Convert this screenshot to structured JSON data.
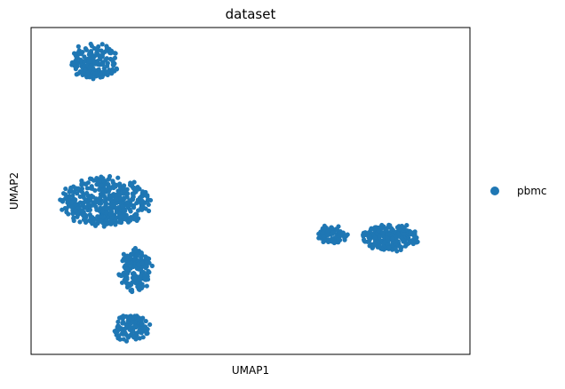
{
  "chart_data": {
    "type": "scatter",
    "title": "dataset",
    "xlabel": "UMAP1",
    "ylabel": "UMAP2",
    "xticks": [],
    "yticks": [],
    "grid": false,
    "legend": {
      "placement": "right",
      "entries": [
        {
          "label": "pbmc",
          "color": "#1f77b4"
        }
      ]
    },
    "series": [
      {
        "name": "pbmc",
        "color": "#1f77b4",
        "clusters": [
          {
            "shape": "ellipse",
            "center": [
              -8.2,
              10.8
            ],
            "spread": [
              1.4,
              1.1
            ],
            "count": 180
          },
          {
            "shape": "ellipse",
            "center": [
              -7.6,
              1.8
            ],
            "spread": [
              2.6,
              1.5
            ],
            "count": 450
          },
          {
            "shape": "ellipse",
            "center": [
              -5.8,
              -2.6
            ],
            "spread": [
              0.9,
              1.3
            ],
            "count": 180
          },
          {
            "shape": "ellipse",
            "center": [
              -6.1,
              -6.3
            ],
            "spread": [
              1.0,
              0.8
            ],
            "count": 130
          },
          {
            "shape": "ellipse",
            "center": [
              5.8,
              -0.3
            ],
            "spread": [
              0.9,
              0.5
            ],
            "count": 90
          },
          {
            "shape": "ellipse",
            "center": [
              9.3,
              -0.5
            ],
            "spread": [
              1.6,
              0.8
            ],
            "count": 230
          }
        ]
      }
    ]
  }
}
